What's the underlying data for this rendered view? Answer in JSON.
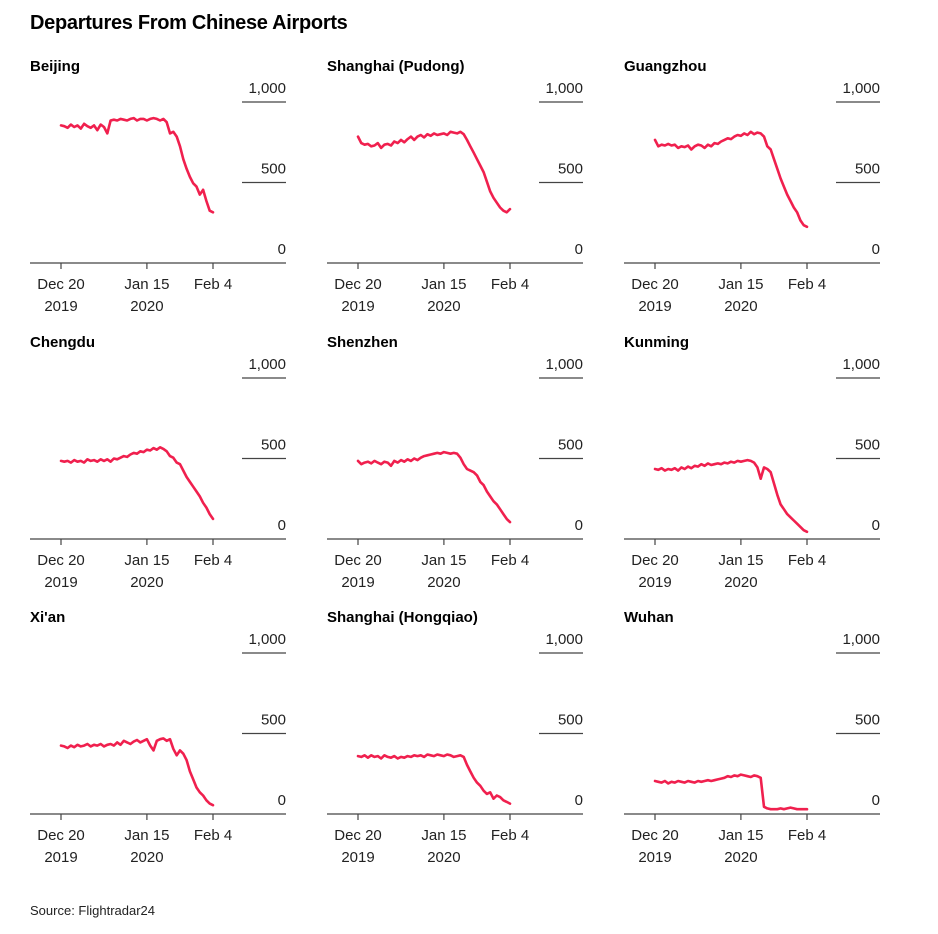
{
  "title": "Departures From Chinese Airports",
  "source": "Source: Flightradar24",
  "colors": {
    "line": "#f0204e",
    "axis": "#444444"
  },
  "chart_data": [
    {
      "type": "line",
      "title": "Beijing",
      "x_ticks": [
        [
          "Dec 20",
          "2019"
        ],
        [
          "Jan 15",
          "2020"
        ],
        [
          "Feb 4",
          ""
        ]
      ],
      "y_ticks": [
        "1,000",
        "500",
        "0"
      ],
      "ylim": [
        0,
        1000
      ],
      "x_range": [
        "2019-12-20",
        "2020-02-04"
      ],
      "x": [
        0,
        1,
        2,
        3,
        4,
        5,
        6,
        7,
        8,
        9,
        10,
        11,
        12,
        13,
        14,
        15,
        16,
        17,
        18,
        19,
        20,
        21,
        22,
        23,
        24,
        25,
        26,
        27,
        28,
        29,
        30,
        31,
        32,
        33,
        34,
        35,
        36,
        37,
        38,
        39,
        40,
        41,
        42,
        43,
        44,
        45,
        46
      ],
      "values": [
        830,
        825,
        815,
        835,
        820,
        830,
        810,
        840,
        825,
        815,
        830,
        800,
        835,
        820,
        780,
        860,
        865,
        860,
        870,
        865,
        860,
        870,
        875,
        860,
        870,
        870,
        860,
        870,
        875,
        870,
        860,
        870,
        850,
        780,
        790,
        760,
        700,
        620,
        560,
        510,
        470,
        450,
        400,
        430,
        360,
        300,
        290
      ]
    },
    {
      "type": "line",
      "title": "Shanghai (Pudong)",
      "x_ticks": [
        [
          "Dec 20",
          "2019"
        ],
        [
          "Jan 15",
          "2020"
        ],
        [
          "Feb 4",
          ""
        ]
      ],
      "y_ticks": [
        "1,000",
        "500",
        "0"
      ],
      "ylim": [
        0,
        1000
      ],
      "x_range": [
        "2019-12-20",
        "2020-02-04"
      ],
      "x": [
        0,
        1,
        2,
        3,
        4,
        5,
        6,
        7,
        8,
        9,
        10,
        11,
        12,
        13,
        14,
        15,
        16,
        17,
        18,
        19,
        20,
        21,
        22,
        23,
        24,
        25,
        26,
        27,
        28,
        29,
        30,
        31,
        32,
        33,
        34,
        35,
        36,
        37,
        38,
        39,
        40,
        41,
        42,
        43,
        44,
        45,
        46
      ],
      "values": [
        760,
        720,
        710,
        715,
        700,
        705,
        720,
        690,
        710,
        715,
        705,
        730,
        720,
        740,
        725,
        745,
        760,
        740,
        760,
        770,
        755,
        775,
        765,
        780,
        770,
        775,
        780,
        770,
        790,
        785,
        780,
        790,
        775,
        740,
        700,
        660,
        620,
        580,
        540,
        480,
        420,
        380,
        350,
        320,
        300,
        290,
        310
      ]
    },
    {
      "type": "line",
      "title": "Guangzhou",
      "x_ticks": [
        [
          "Dec 20",
          "2019"
        ],
        [
          "Jan 15",
          "2020"
        ],
        [
          "Feb 4",
          ""
        ]
      ],
      "y_ticks": [
        "1,000",
        "500",
        "0"
      ],
      "ylim": [
        0,
        1000
      ],
      "x_range": [
        "2019-12-20",
        "2020-02-04"
      ],
      "x": [
        0,
        1,
        2,
        3,
        4,
        5,
        6,
        7,
        8,
        9,
        10,
        11,
        12,
        13,
        14,
        15,
        16,
        17,
        18,
        19,
        20,
        21,
        22,
        23,
        24,
        25,
        26,
        27,
        28,
        29,
        30,
        31,
        32,
        33,
        34,
        35,
        36,
        37,
        38,
        39,
        40,
        41,
        42,
        43,
        44,
        45,
        46
      ],
      "values": [
        740,
        700,
        710,
        705,
        715,
        705,
        710,
        690,
        700,
        695,
        705,
        680,
        700,
        710,
        705,
        690,
        710,
        700,
        720,
        715,
        730,
        740,
        750,
        745,
        760,
        770,
        765,
        780,
        770,
        790,
        775,
        785,
        780,
        760,
        700,
        680,
        620,
        560,
        500,
        450,
        400,
        360,
        320,
        290,
        240,
        210,
        200
      ]
    },
    {
      "type": "line",
      "title": "Chengdu",
      "x_ticks": [
        [
          "Dec 20",
          "2019"
        ],
        [
          "Jan 15",
          "2020"
        ],
        [
          "Feb 4",
          ""
        ]
      ],
      "y_ticks": [
        "1,000",
        "500",
        "0"
      ],
      "ylim": [
        0,
        1000
      ],
      "x_range": [
        "2019-12-20",
        "2020-02-04"
      ],
      "x": [
        0,
        1,
        2,
        3,
        4,
        5,
        6,
        7,
        8,
        9,
        10,
        11,
        12,
        13,
        14,
        15,
        16,
        17,
        18,
        19,
        20,
        21,
        22,
        23,
        24,
        25,
        26,
        27,
        28,
        29,
        30,
        31,
        32,
        33,
        34,
        35,
        36,
        37,
        38,
        39,
        40,
        41,
        42,
        43,
        44,
        45,
        46
      ],
      "values": [
        460,
        455,
        460,
        450,
        465,
        455,
        460,
        450,
        470,
        460,
        465,
        455,
        470,
        460,
        470,
        455,
        475,
        470,
        480,
        490,
        485,
        500,
        510,
        505,
        520,
        515,
        530,
        525,
        540,
        530,
        545,
        535,
        520,
        490,
        480,
        450,
        440,
        400,
        360,
        330,
        300,
        270,
        240,
        200,
        170,
        130,
        100
      ]
    },
    {
      "type": "line",
      "title": "Shenzhen",
      "x_ticks": [
        [
          "Dec 20",
          "2019"
        ],
        [
          "Jan 15",
          "2020"
        ],
        [
          "Feb 4",
          ""
        ]
      ],
      "y_ticks": [
        "1,000",
        "500",
        "0"
      ],
      "ylim": [
        0,
        1000
      ],
      "x_range": [
        "2019-12-20",
        "2020-02-04"
      ],
      "x": [
        0,
        1,
        2,
        3,
        4,
        5,
        6,
        7,
        8,
        9,
        10,
        11,
        12,
        13,
        14,
        15,
        16,
        17,
        18,
        19,
        20,
        21,
        22,
        23,
        24,
        25,
        26,
        27,
        28,
        29,
        30,
        31,
        32,
        33,
        34,
        35,
        36,
        37,
        38,
        39,
        40,
        41,
        42,
        43,
        44,
        45,
        46
      ],
      "values": [
        460,
        440,
        450,
        455,
        445,
        460,
        450,
        440,
        455,
        450,
        430,
        460,
        450,
        465,
        455,
        470,
        460,
        475,
        465,
        480,
        490,
        495,
        500,
        505,
        510,
        505,
        515,
        510,
        505,
        510,
        505,
        480,
        440,
        410,
        400,
        390,
        370,
        330,
        310,
        270,
        240,
        210,
        190,
        160,
        130,
        100,
        80
      ]
    },
    {
      "type": "line",
      "title": "Kunming",
      "x_ticks": [
        [
          "Dec 20",
          "2019"
        ],
        [
          "Jan 15",
          "2020"
        ],
        [
          "Feb 4",
          ""
        ]
      ],
      "y_ticks": [
        "1,000",
        "500",
        "0"
      ],
      "ylim": [
        0,
        1000
      ],
      "x_range": [
        "2019-12-20",
        "2020-02-04"
      ],
      "x": [
        0,
        1,
        2,
        3,
        4,
        5,
        6,
        7,
        8,
        9,
        10,
        11,
        12,
        13,
        14,
        15,
        16,
        17,
        18,
        19,
        20,
        21,
        22,
        23,
        24,
        25,
        26,
        27,
        28,
        29,
        30,
        31,
        32,
        33,
        34,
        35,
        36,
        37,
        38,
        39,
        40,
        41,
        42,
        43,
        44,
        45,
        46
      ],
      "values": [
        410,
        405,
        415,
        400,
        410,
        405,
        415,
        400,
        420,
        410,
        425,
        415,
        430,
        425,
        440,
        430,
        445,
        435,
        440,
        445,
        440,
        450,
        445,
        455,
        450,
        460,
        455,
        460,
        465,
        460,
        450,
        420,
        350,
        420,
        410,
        390,
        320,
        250,
        190,
        160,
        130,
        110,
        90,
        70,
        50,
        30,
        20
      ]
    },
    {
      "type": "line",
      "title": "Xi'an",
      "x_ticks": [
        [
          "Dec 20",
          "2019"
        ],
        [
          "Jan 15",
          "2020"
        ],
        [
          "Feb 4",
          ""
        ]
      ],
      "y_ticks": [
        "1,000",
        "500",
        "0"
      ],
      "ylim": [
        0,
        1000
      ],
      "x_range": [
        "2019-12-20",
        "2020-02-04"
      ],
      "x": [
        0,
        1,
        2,
        3,
        4,
        5,
        6,
        7,
        8,
        9,
        10,
        11,
        12,
        13,
        14,
        15,
        16,
        17,
        18,
        19,
        20,
        21,
        22,
        23,
        24,
        25,
        26,
        27,
        28,
        29,
        30,
        31,
        32,
        33,
        34,
        35,
        36,
        37,
        38,
        39,
        40,
        41,
        42,
        43,
        44,
        45,
        46
      ],
      "values": [
        400,
        395,
        385,
        400,
        390,
        405,
        395,
        400,
        410,
        395,
        405,
        400,
        410,
        395,
        405,
        410,
        400,
        420,
        405,
        430,
        420,
        410,
        425,
        435,
        420,
        430,
        440,
        400,
        370,
        430,
        440,
        445,
        430,
        440,
        380,
        340,
        370,
        350,
        310,
        240,
        190,
        140,
        110,
        90,
        60,
        40,
        30
      ]
    },
    {
      "type": "line",
      "title": "Shanghai (Hongqiao)",
      "x_ticks": [
        [
          "Dec 20",
          "2019"
        ],
        [
          "Jan 15",
          "2020"
        ],
        [
          "Feb 4",
          ""
        ]
      ],
      "y_ticks": [
        "1,000",
        "500",
        "0"
      ],
      "ylim": [
        0,
        1000
      ],
      "x_range": [
        "2019-12-20",
        "2020-02-04"
      ],
      "x": [
        0,
        1,
        2,
        3,
        4,
        5,
        6,
        7,
        8,
        9,
        10,
        11,
        12,
        13,
        14,
        15,
        16,
        17,
        18,
        19,
        20,
        21,
        22,
        23,
        24,
        25,
        26,
        27,
        28,
        29,
        30,
        31,
        32,
        33,
        34,
        35,
        36,
        37,
        38,
        39,
        40,
        41,
        42,
        43,
        44,
        45,
        46
      ],
      "values": [
        335,
        330,
        340,
        325,
        340,
        330,
        335,
        320,
        340,
        330,
        325,
        335,
        320,
        330,
        325,
        335,
        330,
        340,
        335,
        340,
        330,
        345,
        340,
        335,
        345,
        340,
        335,
        345,
        340,
        330,
        335,
        340,
        330,
        280,
        240,
        200,
        170,
        150,
        120,
        100,
        110,
        70,
        90,
        80,
        60,
        50,
        40
      ]
    },
    {
      "type": "line",
      "title": "Wuhan",
      "x_ticks": [
        [
          "Dec 20",
          "2019"
        ],
        [
          "Jan 15",
          "2020"
        ],
        [
          "Feb 4",
          ""
        ]
      ],
      "y_ticks": [
        "1,000",
        "500",
        "0"
      ],
      "ylim": [
        0,
        1000
      ],
      "x_range": [
        "2019-12-20",
        "2020-02-04"
      ],
      "x": [
        0,
        1,
        2,
        3,
        4,
        5,
        6,
        7,
        8,
        9,
        10,
        11,
        12,
        13,
        14,
        15,
        16,
        17,
        18,
        19,
        20,
        21,
        22,
        23,
        24,
        25,
        26,
        27,
        28,
        29,
        30,
        31,
        32,
        33,
        34,
        35,
        36,
        37,
        38,
        39,
        40,
        41,
        42,
        43,
        44,
        45,
        46
      ],
      "values": [
        180,
        175,
        170,
        180,
        165,
        175,
        170,
        180,
        175,
        170,
        180,
        175,
        170,
        180,
        175,
        180,
        185,
        180,
        185,
        190,
        195,
        200,
        210,
        205,
        215,
        210,
        220,
        215,
        210,
        205,
        215,
        210,
        200,
        20,
        10,
        5,
        5,
        5,
        10,
        5,
        10,
        15,
        10,
        5,
        5,
        5,
        5
      ]
    }
  ]
}
